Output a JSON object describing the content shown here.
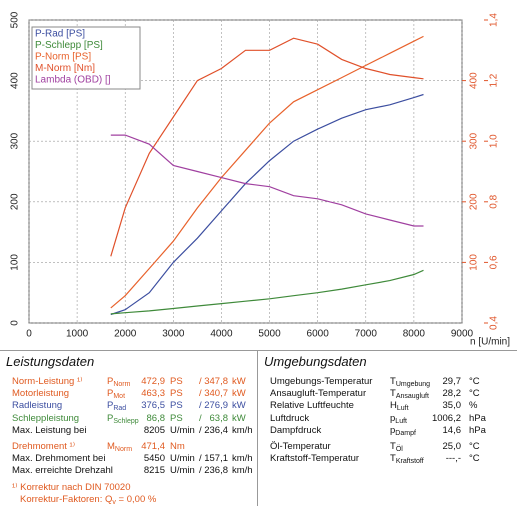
{
  "chart_data": {
    "type": "line",
    "x": [
      1700,
      2000,
      2500,
      3000,
      3500,
      4000,
      4500,
      5000,
      5500,
      6000,
      6500,
      7000,
      7500,
      8000,
      8200
    ],
    "series": [
      {
        "name": "P-Rad [PS]",
        "color": "#3c4ea0",
        "axis": "y",
        "values": [
          14,
          22,
          50,
          100,
          140,
          185,
          230,
          268,
          300,
          320,
          338,
          352,
          360,
          372,
          377
        ]
      },
      {
        "name": "P-Schlepp [PS]",
        "color": "#3f8a3a",
        "axis": "y",
        "values": [
          15,
          17,
          20,
          24,
          28,
          32,
          36,
          40,
          45,
          50,
          56,
          63,
          70,
          80,
          87
        ]
      },
      {
        "name": "P-Norm [PS]",
        "color": "#e8622c",
        "axis": "y",
        "values": [
          25,
          45,
          90,
          135,
          190,
          240,
          285,
          330,
          365,
          385,
          405,
          425,
          445,
          465,
          473
        ]
      },
      {
        "name": "M-Norm [Nm]",
        "color": "#e0502a",
        "axis": "y2",
        "values": [
          110,
          190,
          280,
          340,
          400,
          420,
          450,
          450,
          470,
          460,
          435,
          420,
          410,
          405,
          403
        ]
      },
      {
        "name": "Lambda (OBD) []",
        "color": "#a040a0",
        "axis": "y3",
        "values": [
          1.02,
          1.02,
          0.99,
          0.92,
          0.9,
          0.88,
          0.86,
          0.85,
          0.82,
          0.81,
          0.79,
          0.76,
          0.74,
          0.72,
          0.72
        ]
      }
    ],
    "xlabel": "n [U/min]",
    "xlim": [
      0,
      9000
    ],
    "xticks": [
      0,
      1000,
      2000,
      3000,
      4000,
      5000,
      6000,
      7000,
      8000,
      9000
    ],
    "ylim": [
      0,
      500
    ],
    "yticks": [
      0,
      100,
      200,
      300,
      400,
      500
    ],
    "y2lim": [
      0,
      500
    ],
    "y2ticks": [
      100,
      200,
      300,
      400
    ],
    "y3lim": [
      0.4,
      1.4
    ],
    "y3ticks": [
      {
        "value": 0.4,
        "label": "0,4"
      },
      {
        "value": 0.6,
        "label": "0,6"
      },
      {
        "value": 0.8,
        "label": "0,8"
      },
      {
        "value": 1.0,
        "label": "1,0"
      },
      {
        "value": 1.2,
        "label": "1,2"
      },
      {
        "value": 1.4,
        "label": "1,4"
      }
    ],
    "grid": true,
    "legend": "upper left"
  },
  "leistungsdaten": {
    "title": "Leistungsdaten",
    "groups": [
      [
        {
          "color": "#e05a20",
          "label": "Norm-Leistung ¹⁾",
          "symbol": {
            "base": "P",
            "sub": "Norm"
          },
          "value": "472,9",
          "unit": "PS",
          "sep": "/",
          "value2": "347,8",
          "unit2": "kW"
        },
        {
          "color": "#e05a20",
          "label": "Motorleistung",
          "symbol": {
            "base": "P",
            "sub": "Mot"
          },
          "value": "463,3",
          "unit": "PS",
          "sep": "/",
          "value2": "340,7",
          "unit2": "kW"
        },
        {
          "color": "#3c4ea0",
          "label": "Radleistung",
          "symbol": {
            "base": "P",
            "sub": "Rad"
          },
          "value": "376,5",
          "unit": "PS",
          "sep": "/",
          "value2": "276,9",
          "unit2": "kW"
        },
        {
          "color": "#3f8a3a",
          "label": "Schleppleistung",
          "symbol": {
            "base": "P",
            "sub": "Schlepp"
          },
          "value": "86,8",
          "unit": "PS",
          "sep": "/",
          "value2": "63,8",
          "unit2": "kW"
        },
        {
          "color": "#111111",
          "label": "Max. Leistung bei",
          "value": "8205",
          "unit": "U/min",
          "sep": "/",
          "value2": "236,4",
          "unit2": "km/h"
        }
      ],
      [
        {
          "color": "#e05a20",
          "label": "Drehmoment ¹⁾",
          "symbol": {
            "base": "M",
            "sub": "Norm"
          },
          "value": "471,4",
          "unit": "Nm"
        },
        {
          "color": "#111111",
          "label": "Max. Drehmoment bei",
          "value": "5450",
          "unit": "U/min",
          "sep": "/",
          "value2": "157,1",
          "unit2": "km/h"
        },
        {
          "color": "#111111",
          "label": "Max. erreichte Drehzahl",
          "value": "8215",
          "unit": "U/min",
          "sep": "/",
          "value2": "236,8",
          "unit2": "km/h"
        }
      ]
    ],
    "footnotes": [
      {
        "text": "¹⁾ Korrektur nach DIN 70020"
      },
      {
        "label": "Korrektur-Faktoren:",
        "symbol": {
          "base": "Q",
          "sub": "v"
        },
        "text": "=  0,00 %"
      }
    ]
  },
  "umgebungsdaten": {
    "title": "Umgebungsdaten",
    "groups": [
      [
        {
          "label": "Umgebungs-Temperatur",
          "symbol": {
            "base": "T",
            "sub": "Umgebung"
          },
          "value": "29,7",
          "unit": "°C"
        },
        {
          "label": "Ansaugluft-Temperatur",
          "symbol": {
            "base": "T",
            "sub": "Ansaugluft"
          },
          "value": "28,2",
          "unit": "°C"
        },
        {
          "label": "Relative Luftfeuchte",
          "symbol": {
            "base": "H",
            "sub": "Luft"
          },
          "value": "35,0",
          "unit": "%"
        },
        {
          "label": "Luftdruck",
          "symbol": {
            "base": "p",
            "sub": "Luft"
          },
          "value": "1006,2",
          "unit": "hPa"
        },
        {
          "label": "Dampfdruck",
          "symbol": {
            "base": "p",
            "sub": "Dampf"
          },
          "value": "14,6",
          "unit": "hPa"
        }
      ],
      [
        {
          "label": "Öl-Temperatur",
          "symbol": {
            "base": "T",
            "sub": "Öl"
          },
          "value": "25,0",
          "unit": "°C"
        },
        {
          "label": "Kraftstoff-Temperatur",
          "symbol": {
            "base": "T",
            "sub": "Kraftstoff"
          },
          "value": "---,-",
          "unit": "°C"
        }
      ]
    ]
  }
}
